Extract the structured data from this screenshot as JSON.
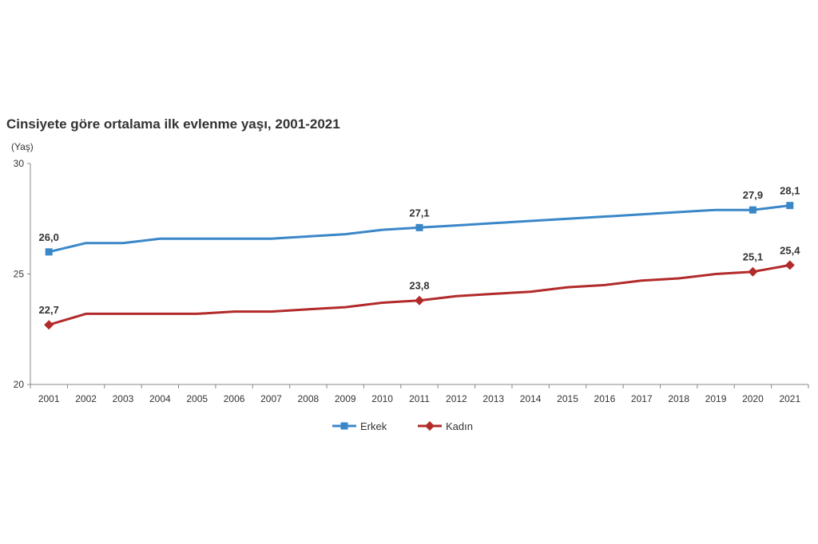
{
  "chart_data": {
    "type": "line",
    "title": "Cinsiyete göre ortalama ilk evlenme yaşı, 2001-2021",
    "ylabel": "(Yaş)",
    "xlabel": "",
    "ylim": [
      20,
      30
    ],
    "yticks": [
      "20",
      "25",
      "30"
    ],
    "x": [
      "2001",
      "2002",
      "2003",
      "2004",
      "2005",
      "2006",
      "2007",
      "2008",
      "2009",
      "2010",
      "2011",
      "2012",
      "2013",
      "2014",
      "2015",
      "2016",
      "2017",
      "2018",
      "2019",
      "2020",
      "2021"
    ],
    "legend_position": "bottom",
    "grid": false,
    "series": [
      {
        "name": "Erkek",
        "color": "#3A87C8",
        "marker": "square",
        "values": [
          26.0,
          26.4,
          26.4,
          26.6,
          26.6,
          26.6,
          26.6,
          26.7,
          26.8,
          27.0,
          27.1,
          27.2,
          27.3,
          27.4,
          27.5,
          27.6,
          27.7,
          27.8,
          27.9,
          27.9,
          28.1
        ],
        "labels": {
          "0": "26,0",
          "10": "27,1",
          "19": "27,9",
          "20": "28,1"
        }
      },
      {
        "name": "Kadın",
        "color": "#B22A2A",
        "marker": "diamond",
        "values": [
          22.7,
          23.2,
          23.2,
          23.2,
          23.2,
          23.3,
          23.3,
          23.4,
          23.5,
          23.7,
          23.8,
          24.0,
          24.1,
          24.2,
          24.4,
          24.5,
          24.7,
          24.8,
          25.0,
          25.1,
          25.4
        ],
        "labels": {
          "0": "22,7",
          "10": "23,8",
          "19": "25,1",
          "20": "25,4"
        }
      }
    ]
  }
}
